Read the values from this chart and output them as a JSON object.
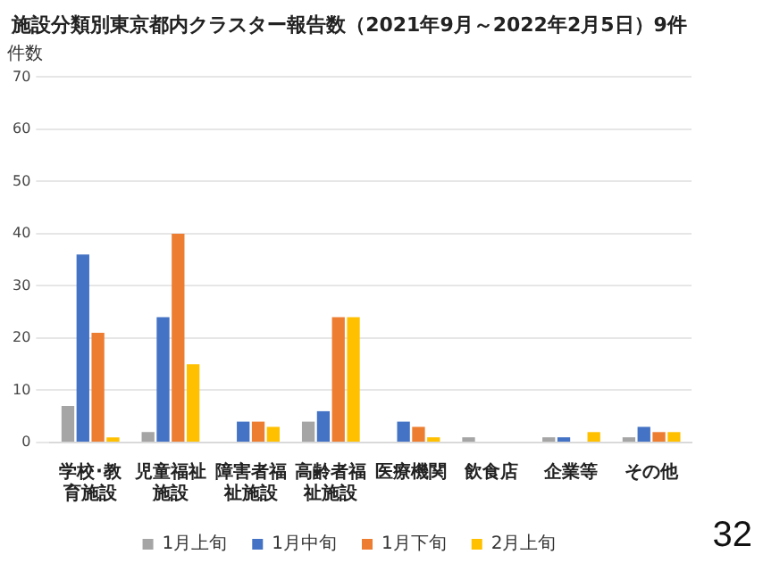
{
  "chart_data": {
    "type": "bar",
    "title": "施設分類別東京都内クラスター報告数（2021年9月～2022年2月5日）9件",
    "ylabel": "件数",
    "categories": [
      "学校･教育施設",
      "児童福祉施設",
      "障害者福祉施設",
      "高齢者福祉施設",
      "医療機関",
      "飲食店",
      "企業等",
      "その他"
    ],
    "series": [
      {
        "name": "1月上旬",
        "color": "#a5a5a5",
        "values": [
          7,
          2,
          0,
          4,
          0,
          1,
          1,
          1
        ]
      },
      {
        "name": "1月中旬",
        "color": "#4472c4",
        "values": [
          36,
          24,
          4,
          6,
          4,
          0,
          1,
          3
        ]
      },
      {
        "name": "1月下旬",
        "color": "#ed7d31",
        "values": [
          21,
          40,
          4,
          24,
          3,
          0,
          0,
          2
        ]
      },
      {
        "name": "2月上旬",
        "color": "#ffc000",
        "values": [
          1,
          15,
          3,
          24,
          1,
          0,
          2,
          2
        ]
      }
    ],
    "ylim": [
      0,
      70
    ],
    "yticks": [
      0,
      10,
      20,
      30,
      40,
      50,
      60,
      70
    ],
    "grid": "y",
    "legend": "bottom",
    "annotations": [
      "32"
    ]
  }
}
